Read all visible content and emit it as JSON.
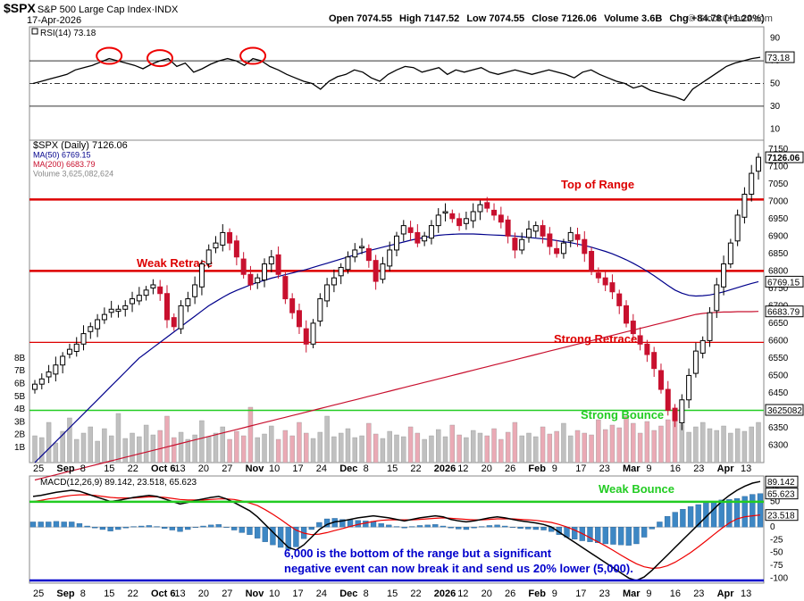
{
  "header": {
    "symbol": "$SPX",
    "name": "S&P 500 Large Cap Index",
    "exchange": "INDX",
    "date": "17-Apr-2026",
    "open": "Open 7074.55",
    "high": "High 7147.52",
    "low": "Low 7074.55",
    "close": "Close 7126.06",
    "volume": "Volume 3.6B",
    "chg": "Chg +84.78 (+1.20%)",
    "copyright": "© StockCharts.com",
    "up_arrow": "▲"
  },
  "colors": {
    "up": "#000000",
    "down": "#c8102e",
    "ma50": "#00008b",
    "ma200": "#c8102e",
    "level": "#dd0000",
    "green": "#22cc22",
    "annot_blue": "#0000cc",
    "macd_hist": "#3d87c4"
  },
  "chart_data": [
    {
      "type": "line",
      "panel": "rsi",
      "title": "RSI(14) 73.18",
      "yticks": [
        10,
        30,
        50,
        70,
        90
      ],
      "last_value_label": "73.18",
      "ylim": [
        0,
        100
      ],
      "reference_lines": [
        70,
        50,
        30
      ],
      "circled_peaks_index": [
        9,
        15,
        26
      ],
      "values": [
        50,
        52,
        54,
        56,
        58,
        62,
        64,
        66,
        69,
        72,
        70,
        68,
        66,
        63,
        67,
        70,
        72,
        65,
        68,
        60,
        63,
        67,
        70,
        72,
        70,
        66,
        72,
        70,
        65,
        62,
        58,
        55,
        52,
        50,
        45,
        52,
        56,
        58,
        62,
        60,
        55,
        52,
        58,
        62,
        65,
        64,
        60,
        62,
        64,
        58,
        62,
        60,
        62,
        64,
        60,
        58,
        60,
        62,
        60,
        58,
        60,
        62,
        60,
        58,
        55,
        60,
        62,
        58,
        55,
        52,
        50,
        46,
        48,
        44,
        42,
        40,
        38,
        35,
        45,
        50,
        55,
        60,
        65,
        68,
        70,
        72,
        73.18
      ]
    },
    {
      "type": "candlestick",
      "panel": "price",
      "legend": [
        "$SPX (Daily) 7126.06",
        "MA(50) 6769.15",
        "MA(200) 6683.79",
        "Volume 3,625,082,624"
      ],
      "ylim": [
        6250,
        7175
      ],
      "yticks": [
        6300,
        6350,
        6400,
        6450,
        6500,
        6550,
        6600,
        6650,
        6700,
        6750,
        6800,
        6850,
        6900,
        6950,
        7000,
        7050,
        7100,
        7150
      ],
      "price_labels": {
        "close": "7126.06",
        "ma50": "6769.15",
        "ma200": "6683.79",
        "volume": "3625082"
      },
      "volume_ticks": [
        "1B",
        "2B",
        "3B",
        "4B",
        "5B",
        "6B",
        "7B",
        "8B"
      ],
      "horizontal_levels": [
        {
          "value": 7005,
          "label": "Top of Range"
        },
        {
          "value": 6800,
          "label": "Weak Retrace"
        },
        {
          "value": 6595,
          "label": "Strong Retrace"
        },
        {
          "value": 6400,
          "label": "Strong Bounce"
        }
      ],
      "close": [
        6475,
        6490,
        6510,
        6530,
        6555,
        6575,
        6590,
        6620,
        6640,
        6660,
        6675,
        6690,
        6690,
        6700,
        6720,
        6730,
        6745,
        6760,
        6735,
        6660,
        6640,
        6700,
        6720,
        6760,
        6820,
        6860,
        6880,
        6910,
        6880,
        6840,
        6790,
        6760,
        6780,
        6820,
        6840,
        6790,
        6720,
        6680,
        6640,
        6590,
        6650,
        6720,
        6760,
        6780,
        6810,
        6840,
        6860,
        6870,
        6830,
        6770,
        6820,
        6860,
        6900,
        6930,
        6910,
        6880,
        6900,
        6930,
        6960,
        6970,
        6950,
        6930,
        6950,
        6970,
        6990,
        6980,
        6960,
        6940,
        6900,
        6860,
        6890,
        6920,
        6930,
        6900,
        6870,
        6850,
        6880,
        6910,
        6890,
        6850,
        6800,
        6780,
        6760,
        6740,
        6700,
        6650,
        6620,
        6590,
        6560,
        6520,
        6460,
        6400,
        6370,
        6430,
        6500,
        6570,
        6600,
        6680,
        6760,
        6820,
        6880,
        6960,
        7020,
        7080,
        7126.06
      ],
      "ma50": [
        6250,
        6270,
        6290,
        6310,
        6330,
        6350,
        6370,
        6390,
        6410,
        6430,
        6450,
        6470,
        6490,
        6510,
        6530,
        6550,
        6565,
        6580,
        6595,
        6610,
        6625,
        6640,
        6655,
        6670,
        6685,
        6700,
        6712,
        6724,
        6735,
        6744,
        6752,
        6760,
        6767,
        6773,
        6779,
        6784,
        6789,
        6794,
        6799,
        6804,
        6810,
        6816,
        6822,
        6828,
        6834,
        6840,
        6846,
        6852,
        6858,
        6863,
        6868,
        6873,
        6878,
        6883,
        6888,
        6892,
        6896,
        6899,
        6902,
        6904,
        6905,
        6906,
        6906,
        6906,
        6905,
        6904,
        6903,
        6902,
        6901,
        6900,
        6898,
        6896,
        6894,
        6892,
        6890,
        6887,
        6884,
        6881,
        6877,
        6873,
        6868,
        6862,
        6856,
        6849,
        6841,
        6832,
        6822,
        6811,
        6799,
        6786,
        6772,
        6758,
        6745,
        6736,
        6730,
        6728,
        6729,
        6731,
        6735,
        6740,
        6746,
        6752,
        6758,
        6764,
        6769.15
      ],
      "ma200": [
        6200,
        6205,
        6210,
        6215,
        6220,
        6225,
        6230,
        6235,
        6240,
        6245,
        6250,
        6255,
        6260,
        6265,
        6270,
        6275,
        6280,
        6285,
        6290,
        6295,
        6300,
        6305,
        6310,
        6315,
        6320,
        6325,
        6330,
        6335,
        6340,
        6345,
        6350,
        6355,
        6360,
        6365,
        6370,
        6375,
        6380,
        6385,
        6390,
        6395,
        6400,
        6405,
        6410,
        6415,
        6420,
        6425,
        6430,
        6435,
        6440,
        6445,
        6450,
        6455,
        6460,
        6465,
        6470,
        6475,
        6480,
        6485,
        6490,
        6495,
        6500,
        6505,
        6510,
        6515,
        6520,
        6525,
        6530,
        6535,
        6540,
        6545,
        6550,
        6555,
        6560,
        6565,
        6570,
        6575,
        6580,
        6585,
        6590,
        6595,
        6600,
        6605,
        6610,
        6615,
        6620,
        6625,
        6630,
        6635,
        6640,
        6645,
        6650,
        6655,
        6660,
        6665,
        6670,
        6675,
        6678,
        6680,
        6681,
        6682,
        6682,
        6683,
        6683,
        6683,
        6683.79
      ]
    },
    {
      "type": "line",
      "panel": "macd",
      "title": "MACD(12,26,9) 89.142, 23.518, 65.623",
      "yticks": [
        -100,
        -75,
        -50,
        -25,
        0,
        25,
        50,
        75
      ],
      "value_labels": {
        "macd": "89.142",
        "hist": "65.623",
        "signal": "23.518"
      },
      "ylim": [
        -110,
        100
      ],
      "macd": [
        60,
        62,
        65,
        68,
        70,
        72,
        70,
        65,
        60,
        55,
        50,
        52,
        55,
        58,
        60,
        62,
        60,
        55,
        50,
        45,
        48,
        52,
        55,
        58,
        60,
        55,
        48,
        40,
        32,
        20,
        5,
        -10,
        -25,
        -40,
        -45,
        -35,
        -20,
        -5,
        5,
        10,
        12,
        15,
        18,
        20,
        22,
        20,
        18,
        15,
        12,
        15,
        18,
        20,
        22,
        20,
        15,
        12,
        10,
        12,
        15,
        18,
        20,
        18,
        15,
        12,
        10,
        8,
        5,
        0,
        -10,
        -20,
        -30,
        -40,
        -50,
        -60,
        -70,
        -80,
        -90,
        -100,
        -105,
        -98,
        -85,
        -70,
        -55,
        -40,
        -25,
        -10,
        5,
        20,
        35,
        50,
        62,
        72,
        80,
        86,
        89.142
      ],
      "signal": [
        50,
        52,
        55,
        57,
        60,
        62,
        63,
        63,
        62,
        60,
        58,
        57,
        57,
        57,
        58,
        59,
        59,
        58,
        56,
        54,
        53,
        53,
        53,
        54,
        55,
        55,
        54,
        51,
        47,
        42,
        34,
        25,
        15,
        4,
        -6,
        -12,
        -15,
        -14,
        -11,
        -7,
        -3,
        1,
        5,
        8,
        11,
        13,
        14,
        14,
        14,
        14,
        15,
        16,
        17,
        18,
        17,
        16,
        15,
        14,
        14,
        15,
        16,
        16,
        16,
        15,
        14,
        13,
        11,
        9,
        5,
        0,
        -6,
        -13,
        -21,
        -29,
        -37,
        -46,
        -55,
        -64,
        -72,
        -78,
        -81,
        -80,
        -76,
        -69,
        -60,
        -50,
        -39,
        -27,
        -15,
        -3,
        8,
        16,
        20,
        22,
        23.518
      ],
      "reference_lines": [
        49.5
      ],
      "annotations": [
        {
          "label": "Weak Bounce"
        },
        {
          "label": "6,000 is the bottom of the range but a significant negative event can now break it and send us 20% lower (5,000)."
        }
      ]
    }
  ],
  "x_axis": {
    "labels": [
      "25",
      "Sep",
      "8",
      "15",
      "22",
      "Oct 6",
      "13",
      "20",
      "27",
      "Nov",
      "10",
      "17",
      "24",
      "Dec",
      "8",
      "15",
      "22",
      "2026",
      "12",
      "20",
      "26",
      "Feb",
      "9",
      "17",
      "23",
      "Mar",
      "9",
      "16",
      "23",
      "Apr",
      "13"
    ]
  }
}
